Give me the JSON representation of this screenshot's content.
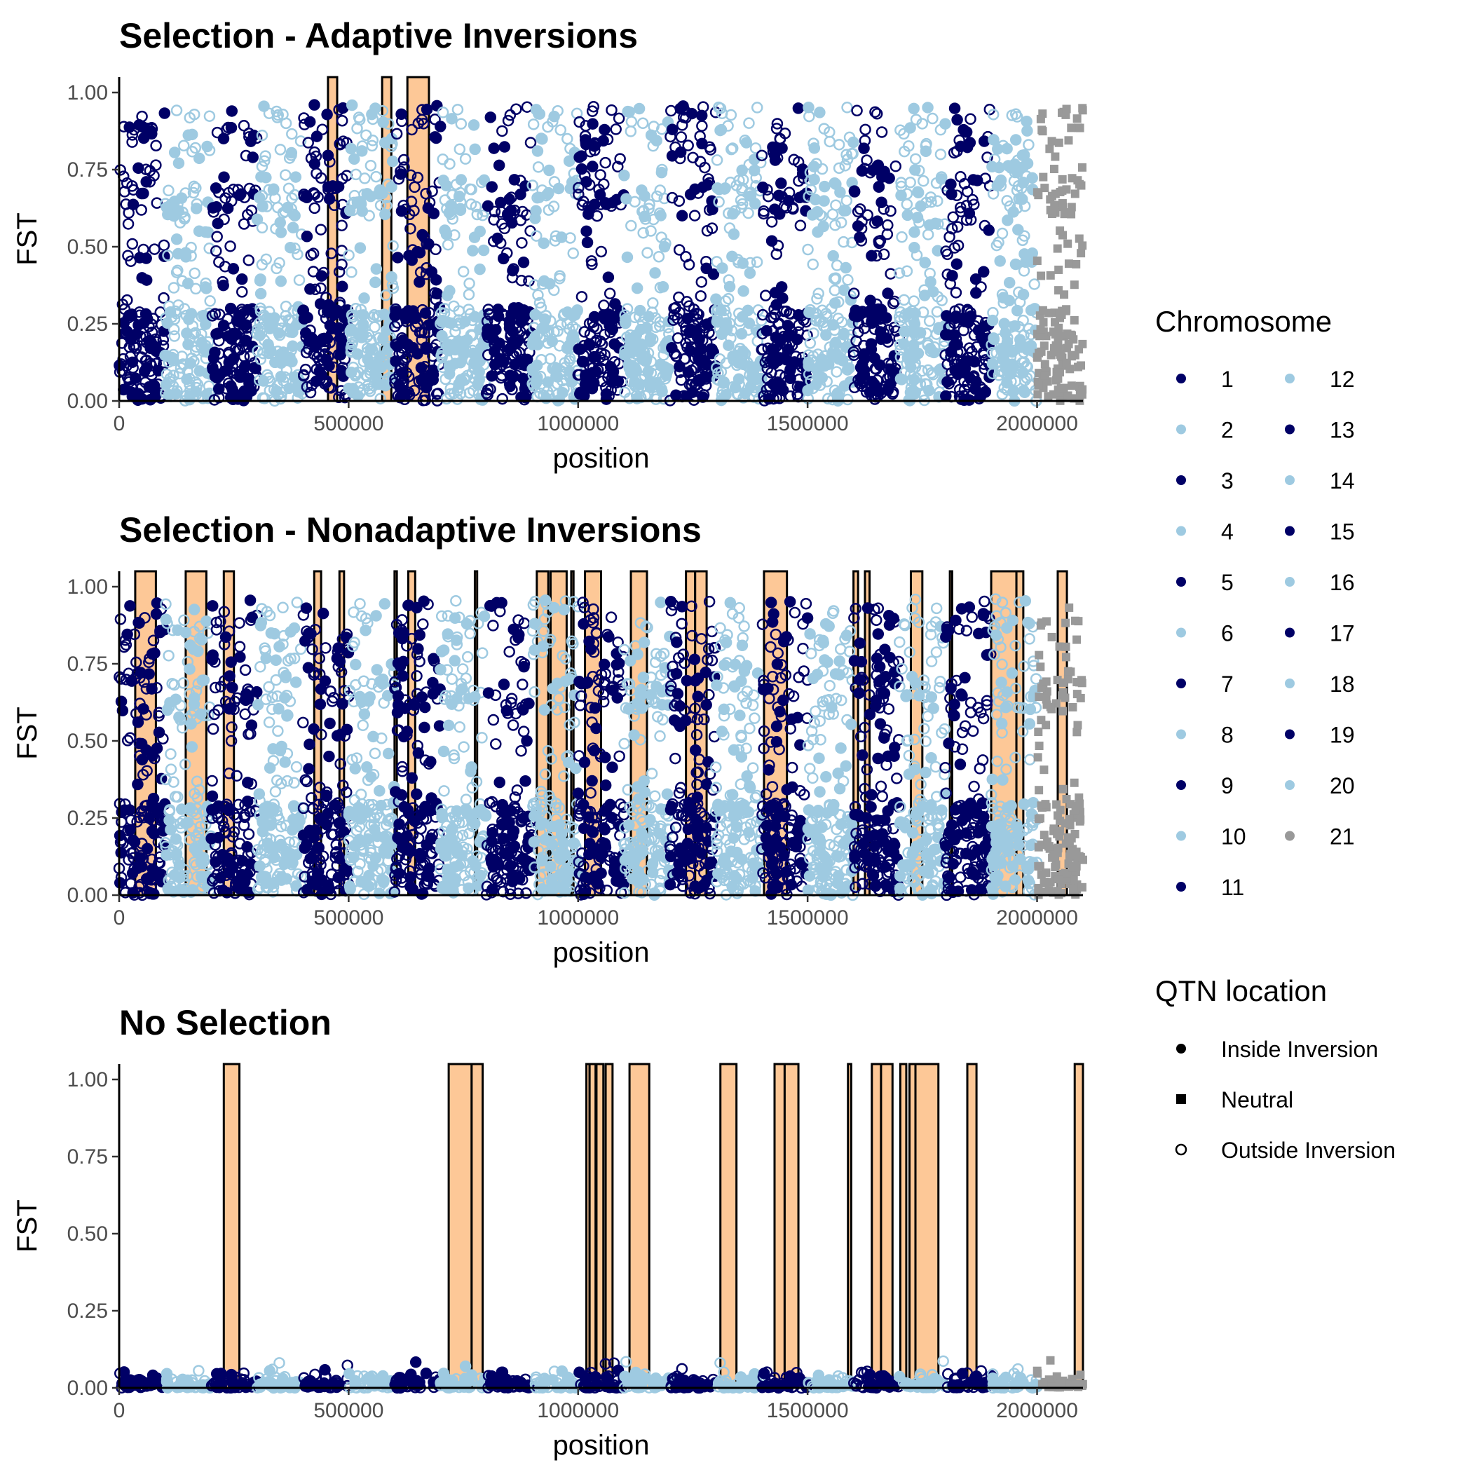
{
  "colors": {
    "dark": "#000066",
    "light": "#9ecae1",
    "neutral": "#999999",
    "inversion_fill": "#fdc897"
  },
  "chart_data": [
    {
      "type": "scatter",
      "title": "Selection - Adaptive Inversions",
      "xlabel": "position",
      "ylabel": "FST",
      "xlim": [
        0,
        2100000
      ],
      "ylim": [
        0,
        1
      ],
      "xticks": [
        0,
        500000,
        1000000,
        1500000,
        2000000
      ],
      "xtick_labels": [
        "0",
        "500000",
        "1000000",
        "1500000",
        "2000000"
      ],
      "yticks": [
        0,
        0.25,
        0.5,
        0.75,
        1.0
      ],
      "ytick_labels": [
        "0.00",
        "0.25",
        "0.50",
        "0.75",
        "1.00"
      ],
      "fst_scale": 1.0,
      "inversions": [
        [
          455000,
          475000
        ],
        [
          573000,
          593000
        ],
        [
          628000,
          675000
        ]
      ],
      "grid": false
    },
    {
      "type": "scatter",
      "title": "Selection - Nonadaptive Inversions",
      "xlabel": "position",
      "ylabel": "FST",
      "xlim": [
        0,
        2100000
      ],
      "ylim": [
        0,
        1
      ],
      "xticks": [
        0,
        500000,
        1000000,
        1500000,
        2000000
      ],
      "xtick_labels": [
        "0",
        "500000",
        "1000000",
        "1500000",
        "2000000"
      ],
      "yticks": [
        0,
        0.25,
        0.5,
        0.75,
        1.0
      ],
      "ytick_labels": [
        "0.00",
        "0.25",
        "0.50",
        "0.75",
        "1.00"
      ],
      "fst_scale": 1.0,
      "inversions": [
        [
          35000,
          80000
        ],
        [
          145000,
          190000
        ],
        [
          228000,
          250000
        ],
        [
          425000,
          440000
        ],
        [
          480000,
          490000
        ],
        [
          600000,
          605000
        ],
        [
          630000,
          645000
        ],
        [
          775000,
          780000
        ],
        [
          910000,
          935000
        ],
        [
          940000,
          975000
        ],
        [
          985000,
          990000
        ],
        [
          1015000,
          1050000
        ],
        [
          1115000,
          1150000
        ],
        [
          1235000,
          1255000
        ],
        [
          1255000,
          1280000
        ],
        [
          1405000,
          1455000
        ],
        [
          1600000,
          1610000
        ],
        [
          1625000,
          1635000
        ],
        [
          1725000,
          1750000
        ],
        [
          1810000,
          1815000
        ],
        [
          1900000,
          1955000
        ],
        [
          1955000,
          1970000
        ],
        [
          2045000,
          2065000
        ]
      ],
      "grid": false
    },
    {
      "type": "scatter",
      "title": "No Selection",
      "xlabel": "position",
      "ylabel": "FST",
      "xlim": [
        0,
        2100000
      ],
      "ylim": [
        0,
        1
      ],
      "xticks": [
        0,
        500000,
        1000000,
        1500000,
        2000000
      ],
      "xtick_labels": [
        "0",
        "500000",
        "1000000",
        "1500000",
        "2000000"
      ],
      "yticks": [
        0,
        0.25,
        0.5,
        0.75,
        1.0
      ],
      "ytick_labels": [
        "0.00",
        "0.25",
        "0.50",
        "0.75",
        "1.00"
      ],
      "fst_scale": 0.03,
      "inversions": [
        [
          228000,
          262000
        ],
        [
          718000,
          768000
        ],
        [
          768000,
          792000
        ],
        [
          1018000,
          1025000
        ],
        [
          1025000,
          1038000
        ],
        [
          1040000,
          1055000
        ],
        [
          1060000,
          1075000
        ],
        [
          1112000,
          1155000
        ],
        [
          1310000,
          1345000
        ],
        [
          1428000,
          1450000
        ],
        [
          1450000,
          1480000
        ],
        [
          1588000,
          1595000
        ],
        [
          1640000,
          1660000
        ],
        [
          1660000,
          1685000
        ],
        [
          1702000,
          1715000
        ],
        [
          1722000,
          1735000
        ],
        [
          1735000,
          1785000
        ],
        [
          1848000,
          1868000
        ],
        [
          2082000,
          2100000
        ]
      ],
      "grid": false
    }
  ],
  "legend": {
    "placement": "right",
    "chromosome_title": "Chromosome",
    "chromosomes": [
      "1",
      "2",
      "3",
      "4",
      "5",
      "6",
      "7",
      "8",
      "9",
      "10",
      "11",
      "12",
      "13",
      "14",
      "15",
      "16",
      "17",
      "18",
      "19",
      "20",
      "21"
    ],
    "qtn_title": "QTN location",
    "qtn_items": [
      "Inside Inversion",
      "Neutral",
      "Outside Inversion"
    ]
  }
}
